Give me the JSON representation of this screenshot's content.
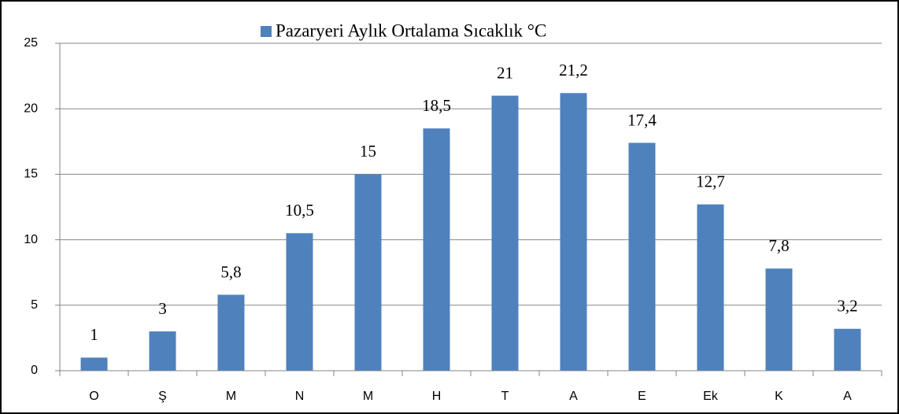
{
  "chart_data": {
    "type": "bar",
    "categories": [
      "O",
      "Ş",
      "M",
      "N",
      "M",
      "H",
      "T",
      "A",
      "E",
      "Ek",
      "K",
      "A"
    ],
    "series": [
      {
        "name": "Pazaryeri Aylık Ortalama Sıcaklık °C",
        "color": "#4f81bd",
        "values": [
          1,
          3,
          5.8,
          10.5,
          15,
          18.5,
          21,
          21.2,
          17.4,
          12.7,
          7.8,
          3.2
        ],
        "value_labels": [
          "1",
          "3",
          "5,8",
          "10,5",
          "15",
          "18,5",
          "21",
          "21,2",
          "17,4",
          "12,7",
          "7,8",
          "3,2"
        ]
      }
    ],
    "ylim": [
      0,
      25
    ],
    "yticks": [
      0,
      5,
      10,
      15,
      20,
      25
    ],
    "grid": true,
    "legend": "top"
  }
}
